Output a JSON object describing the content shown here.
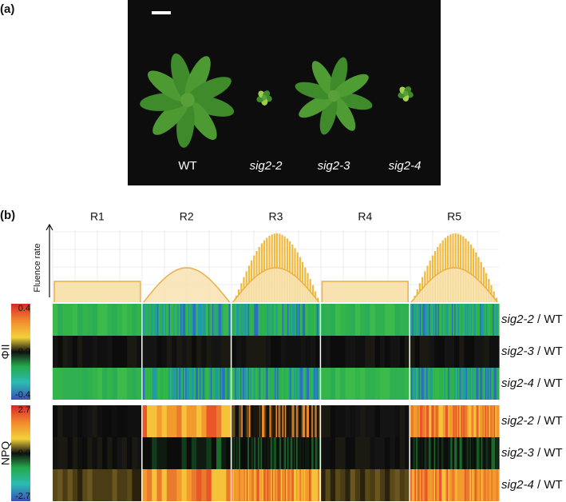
{
  "panel_a": {
    "label": "(a)",
    "plants": [
      "WT",
      "sig2-2",
      "sig2-3",
      "sig2-4"
    ]
  },
  "panel_b": {
    "label": "(b)",
    "regions": [
      "R1",
      "R2",
      "R3",
      "R4",
      "R5"
    ],
    "fluence_axis_label": "Fluence rate",
    "heatmaps": [
      {
        "name": "ΦII",
        "ticks": [
          "0.4",
          "0.0",
          "-0.4"
        ],
        "rows": [
          {
            "line": "sig2-2",
            "ratio": " / WT"
          },
          {
            "line": "sig2-3",
            "ratio": " / WT"
          },
          {
            "line": "sig2-4",
            "ratio": " / WT"
          }
        ]
      },
      {
        "name": "NPQ",
        "ticks": [
          "2.7",
          "0.0",
          "-2.7"
        ],
        "rows": [
          {
            "line": "sig2-2",
            "ratio": " / WT"
          },
          {
            "line": "sig2-3",
            "ratio": " / WT"
          },
          {
            "line": "sig2-4",
            "ratio": " / WT"
          }
        ]
      }
    ]
  }
}
